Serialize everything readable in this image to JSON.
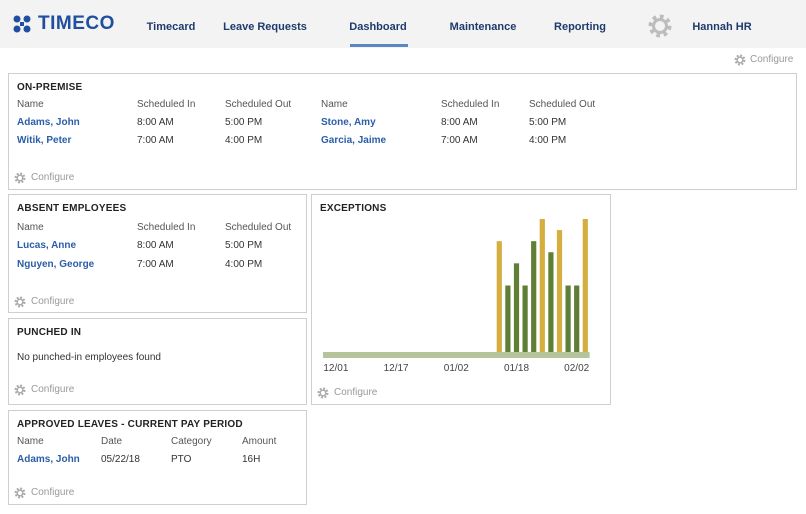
{
  "header": {
    "logo": "TIMECO",
    "nav": [
      "Timecard",
      "Leave Requests",
      "Dashboard",
      "Maintenance",
      "Reporting"
    ],
    "user": "Hannah HR"
  },
  "configure": "Configure",
  "on_premise": {
    "title": "ON-PREMISE",
    "columns": [
      "Name",
      "Scheduled In",
      "Scheduled Out",
      "Name",
      "Scheduled In",
      "Scheduled Out"
    ],
    "rows": [
      [
        "Adams, John",
        "8:00 AM",
        "5:00 PM",
        "Stone, Amy",
        "8:00 AM",
        "5:00 PM"
      ],
      [
        "Witik, Peter",
        "7:00 AM",
        "4:00 PM",
        "Garcia, Jaime",
        "7:00 AM",
        "4:00 PM"
      ]
    ],
    "configure": "Configure"
  },
  "absent": {
    "title": "ABSENT EMPLOYEES",
    "columns": [
      "Name",
      "Scheduled In",
      "Scheduled Out"
    ],
    "rows": [
      [
        "Lucas, Anne",
        "8:00 AM",
        "5:00 PM"
      ],
      [
        "Nguyen, George",
        "7:00 AM",
        "4:00 PM"
      ]
    ],
    "configure": "Configure"
  },
  "punched_in": {
    "title": "PUNCHED IN",
    "message": "No punched-in employees found",
    "configure": "Configure"
  },
  "approved_leaves": {
    "title": "APPROVED LEAVES - CURRENT PAY PERIOD",
    "columns": [
      "Name",
      "Date",
      "Category",
      "Amount"
    ],
    "rows": [
      [
        "Adams, John",
        "05/22/18",
        "PTO",
        "16H"
      ]
    ],
    "configure": "Configure"
  },
  "exceptions": {
    "title": "EXCEPTIONS",
    "configure": "Configure",
    "chart_data": {
      "type": "bar",
      "categories": [
        null,
        "12/01",
        null,
        null,
        null,
        null,
        null,
        null,
        "12/17",
        null,
        null,
        null,
        null,
        null,
        null,
        "01/02",
        null,
        null,
        null,
        null,
        null,
        null,
        "01/18",
        null,
        null,
        null,
        null,
        null,
        null,
        "02/02",
        null
      ],
      "values": [
        0,
        0,
        0,
        0,
        0,
        0,
        0,
        0,
        0,
        0,
        0,
        0,
        0,
        0,
        0,
        0,
        0,
        0,
        0,
        0,
        5,
        3,
        4,
        3,
        5,
        6,
        4.5,
        5.5,
        3,
        3,
        6
      ],
      "colors": [
        "#5f7f35",
        "#5f7f35",
        "#5f7f35",
        "#5f7f35",
        "#5f7f35",
        "#5f7f35",
        "#5f7f35",
        "#5f7f35",
        "#5f7f35",
        "#5f7f35",
        "#5f7f35",
        "#5f7f35",
        "#5f7f35",
        "#5f7f35",
        "#5f7f35",
        "#5f7f35",
        "#5f7f35",
        "#5f7f35",
        "#5f7f35",
        "#5f7f35",
        "#d4ae3f",
        "#5f7f35",
        "#5f7f35",
        "#5f7f35",
        "#5f7f35",
        "#d4ae3f",
        "#5f7f35",
        "#d4ae3f",
        "#5f7f35",
        "#5f7f35",
        "#d4ae3f"
      ],
      "ylim": [
        0,
        6
      ],
      "baseline_color": "#b5c49a"
    }
  }
}
